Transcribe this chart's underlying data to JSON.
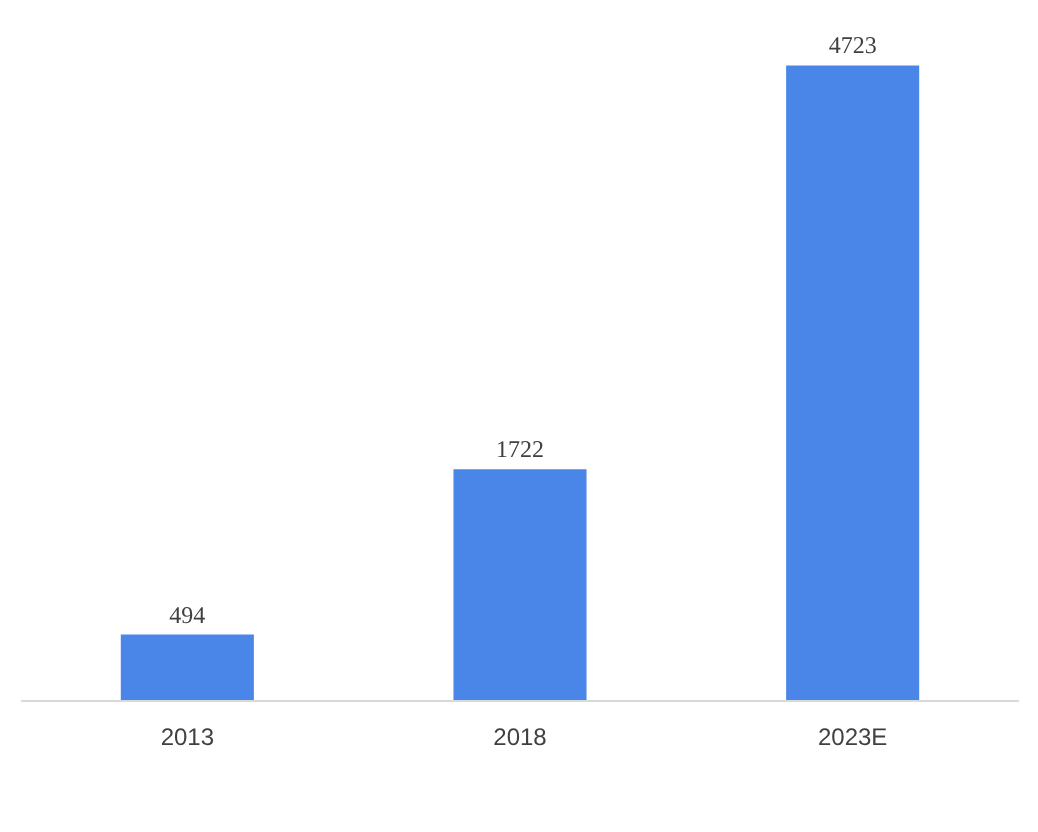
{
  "chart_data": {
    "type": "bar",
    "categories": [
      "2013",
      "2018",
      "2023E"
    ],
    "values": [
      494,
      1722,
      4723
    ],
    "color": "#4a86e8",
    "data_labels": true
  }
}
